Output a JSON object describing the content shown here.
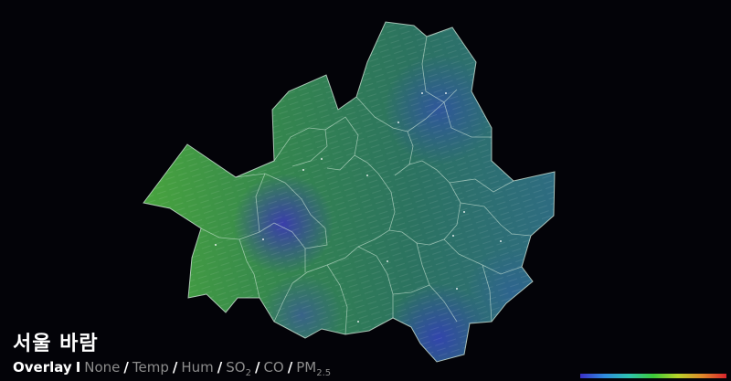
{
  "title": "서울 바람",
  "overlay": {
    "label": "Overlay",
    "selected": "None",
    "options": [
      {
        "id": "none",
        "text": "None"
      },
      {
        "id": "temp",
        "text": "Temp"
      },
      {
        "id": "hum",
        "text": "Hum"
      },
      {
        "id": "so2",
        "text": "SO",
        "sub": "2"
      },
      {
        "id": "co",
        "text": "CO"
      },
      {
        "id": "pm25",
        "text": "PM",
        "sub": "2.5"
      }
    ]
  },
  "colors": {
    "background": "#030308",
    "land_west": "#3f9a3c",
    "land_center": "#2d7a5c",
    "land_east": "#2f6a8a",
    "low_pocket": "#3a3fa8",
    "borders": "#cfe8d8"
  }
}
